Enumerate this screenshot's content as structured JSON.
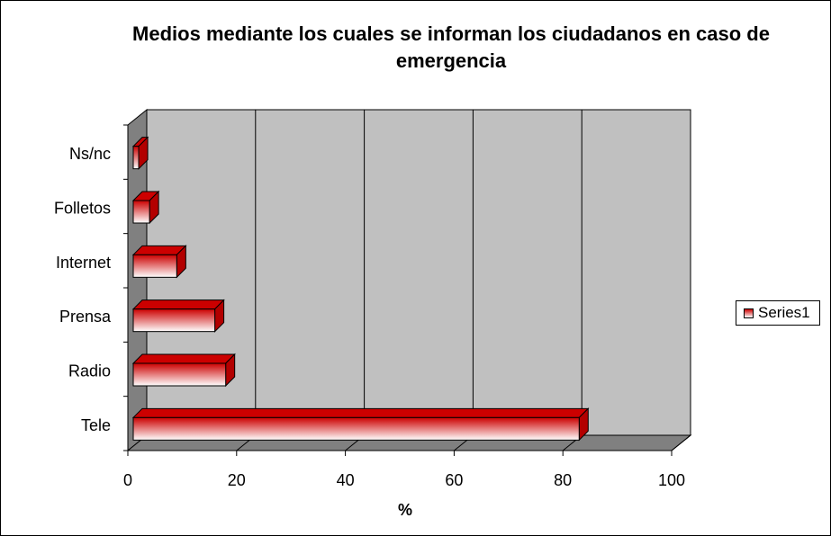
{
  "chart_data": {
    "type": "bar",
    "orientation": "horizontal",
    "three_d": true,
    "title": "Medios mediante los cuales se informan los ciudadanos en caso de emergencia",
    "xlabel": "%",
    "ylabel": "",
    "categories": [
      "Tele",
      "Radio",
      "Prensa",
      "Internet",
      "Folletos",
      "Ns/nc"
    ],
    "series": [
      {
        "name": "Series1",
        "values": [
          82,
          17,
          15,
          8,
          3,
          1
        ]
      }
    ],
    "xlim": [
      0,
      100
    ],
    "xticks": [
      "0",
      "20",
      "40",
      "60",
      "80",
      "100"
    ],
    "grid": true,
    "legend_position": "right",
    "colors": {
      "bar_top": "#cc0000",
      "bar_bottom": "#ffffff",
      "plot_wall": "#c0c0c0",
      "plot_floor": "#808080"
    }
  }
}
